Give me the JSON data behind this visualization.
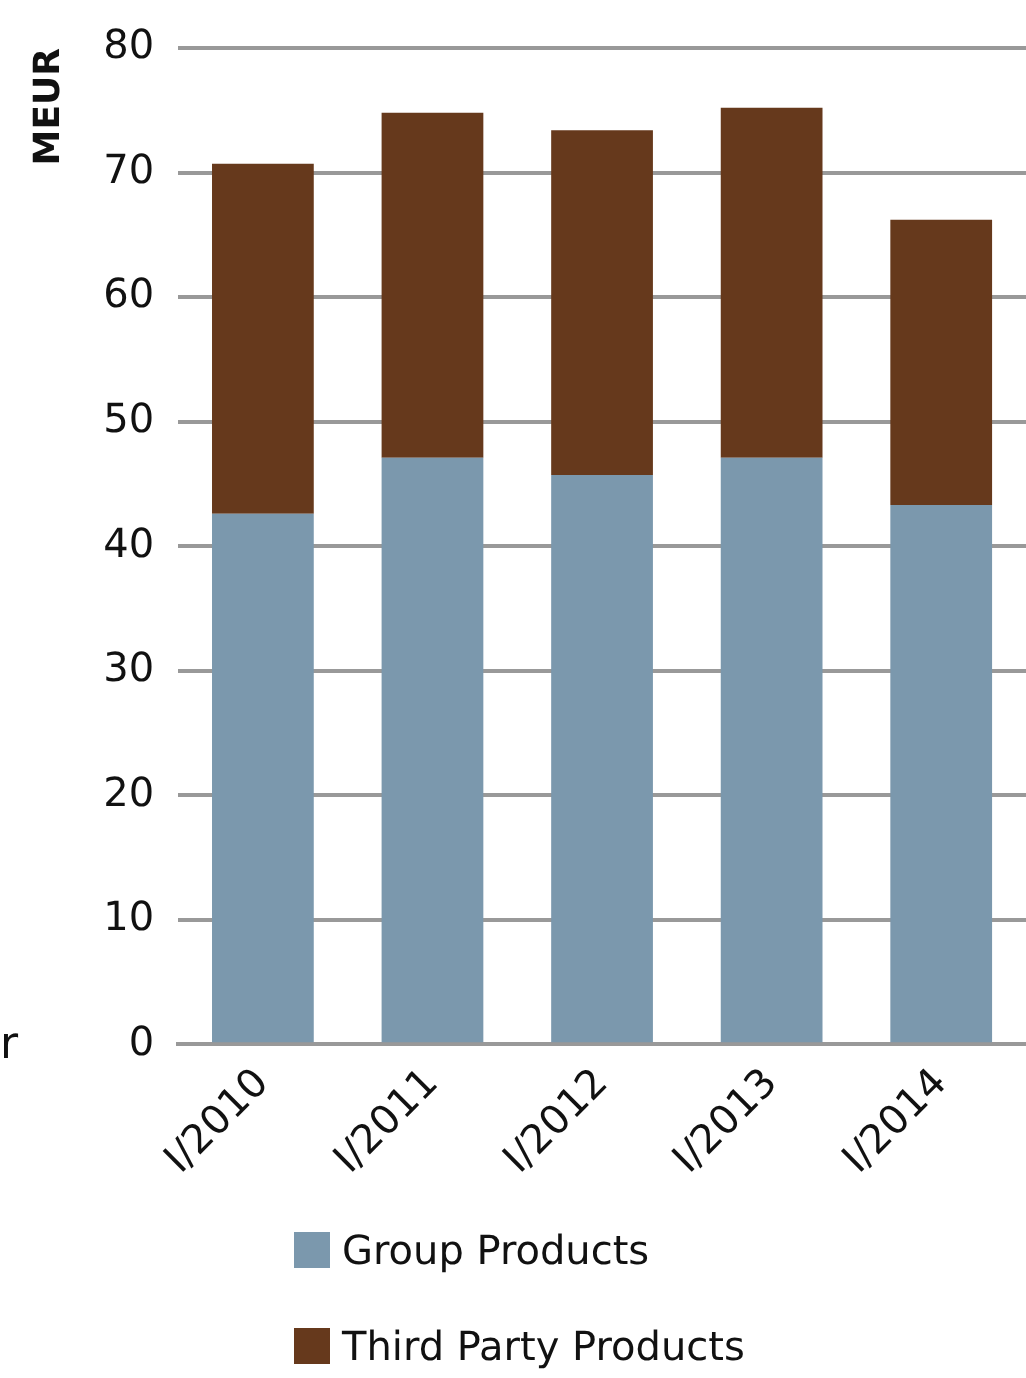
{
  "chart_data": {
    "type": "bar",
    "ylabel": "MEUR",
    "categories": [
      "I/2010",
      "I/2011",
      "I/2012",
      "I/2013",
      "I/2014"
    ],
    "stacked": true,
    "series": [
      {
        "name": "Group Products",
        "color": "#7b98ad",
        "values": [
          42.6,
          47.1,
          45.7,
          47.1,
          43.3
        ]
      },
      {
        "name": "Third Party Products",
        "color": "#66391c",
        "values": [
          28.1,
          27.7,
          27.7,
          28.1,
          22.9
        ]
      }
    ],
    "ylim": [
      0,
      80
    ],
    "yticks": [
      0,
      10,
      20,
      30,
      40,
      50,
      60,
      70,
      80
    ],
    "grid": "y",
    "legend": "bottom",
    "annotations": [
      "r"
    ]
  }
}
